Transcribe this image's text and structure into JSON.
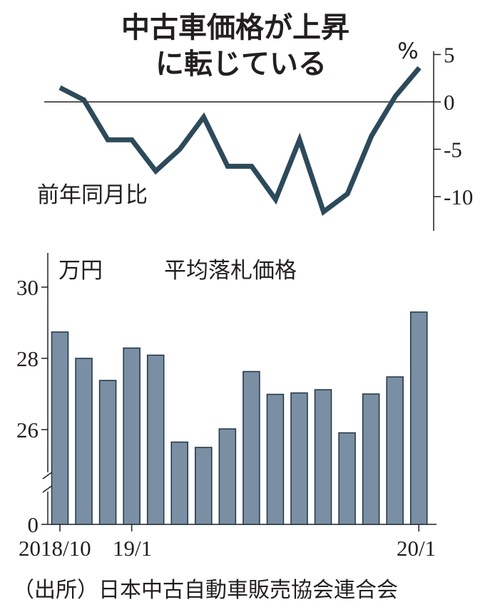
{
  "title_line1": "中古車価格が上昇",
  "title_line2": "に転じている",
  "source": "（出所）日本中古自動車販売協会連合会",
  "colors": {
    "line": "#2d4a5a",
    "bar_fill": "#7a8fa3",
    "bar_stroke": "#1f3442",
    "axis": "#231f20"
  },
  "chart_data": [
    {
      "type": "line",
      "unit_label": "%",
      "ylabel": "前年同月比",
      "ylim": [
        -13,
        5
      ],
      "yticks": [
        5,
        0,
        -5,
        -10
      ],
      "ytick_labels": [
        "5",
        "0",
        "-5",
        "-10"
      ],
      "zero_line": true,
      "x": [
        "2018/10",
        "2018/11",
        "2018/12",
        "2019/1",
        "2019/2",
        "2019/3",
        "2019/4",
        "2019/5",
        "2019/6",
        "2019/7",
        "2019/8",
        "2019/9",
        "2019/10",
        "2019/11",
        "2019/12",
        "2020/1"
      ],
      "values": [
        1.5,
        0.2,
        -4.0,
        -4.0,
        -7.3,
        -5.0,
        -1.6,
        -6.8,
        -6.8,
        -10.3,
        -4.0,
        -11.6,
        -9.7,
        -3.6,
        0.6,
        3.6
      ]
    },
    {
      "type": "bar",
      "unit_label": "万円",
      "series_label": "平均落札価格",
      "ylim": [
        0,
        30.6
      ],
      "axis_break": true,
      "yticks": [
        30,
        28,
        26,
        0
      ],
      "ytick_labels": [
        "30",
        "28",
        "26",
        "0"
      ],
      "categories": [
        "2018/10",
        "2018/11",
        "2018/12",
        "2019/1",
        "2019/2",
        "2019/3",
        "2019/4",
        "2019/5",
        "2019/6",
        "2019/7",
        "2019/8",
        "2019/9",
        "2019/10",
        "2019/11",
        "2019/12",
        "2020/1"
      ],
      "x_tick_labels": [
        {
          "index": 0,
          "label": "2018/10"
        },
        {
          "index": 3,
          "label": "19/1"
        },
        {
          "index": 15,
          "label": "20/1"
        }
      ],
      "values": [
        28.74,
        28.0,
        27.38,
        28.29,
        28.09,
        25.65,
        25.5,
        26.02,
        27.63,
        26.99,
        27.03,
        27.12,
        25.91,
        27.0,
        27.48,
        29.3
      ]
    }
  ]
}
